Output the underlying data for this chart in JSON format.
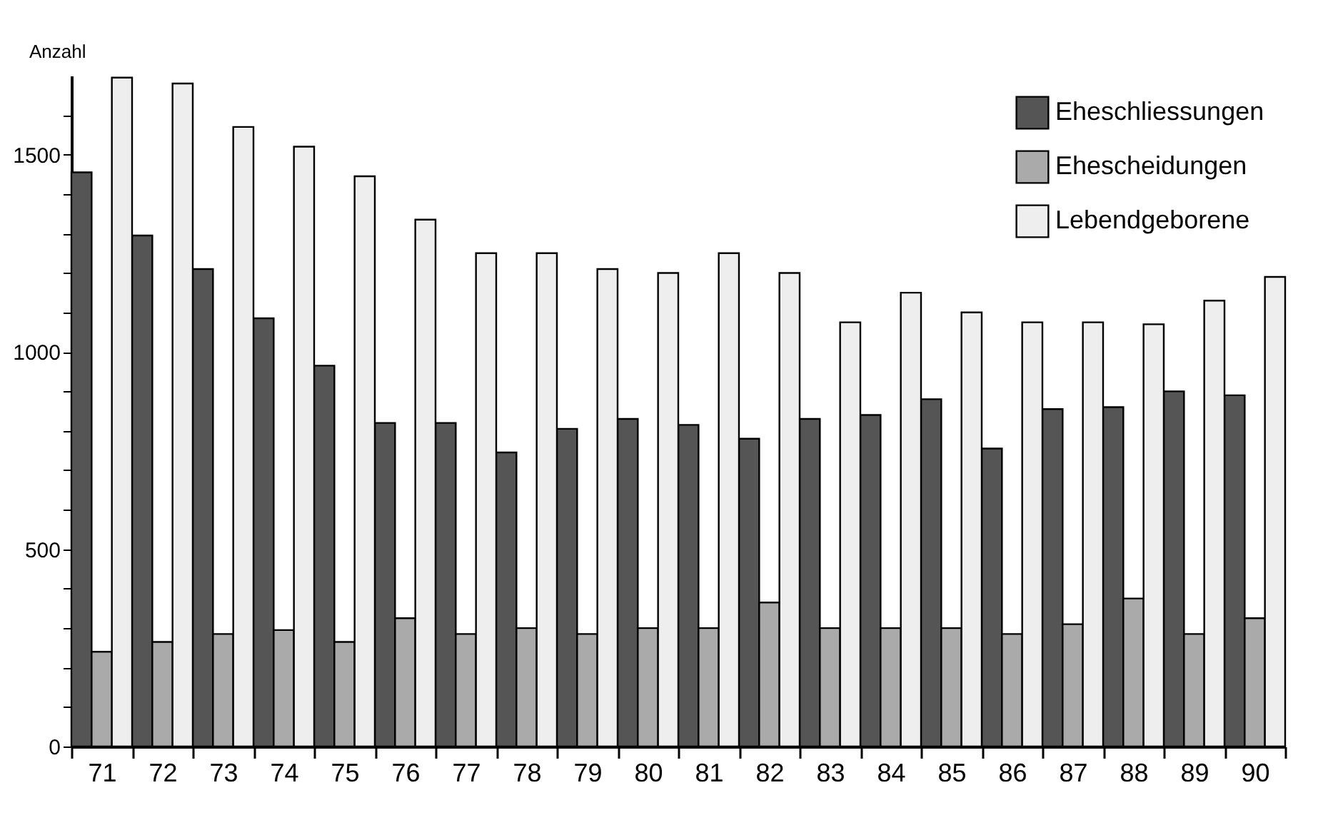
{
  "chart_data": {
    "type": "bar",
    "ylabel": "Anzahl",
    "categories": [
      "71",
      "72",
      "73",
      "74",
      "75",
      "76",
      "77",
      "78",
      "79",
      "80",
      "81",
      "82",
      "83",
      "84",
      "85",
      "86",
      "87",
      "88",
      "89",
      "90"
    ],
    "series": [
      {
        "name": "Eheschliessungen",
        "color": "#555555",
        "values": [
          1455,
          1295,
          1210,
          1085,
          965,
          820,
          820,
          745,
          805,
          830,
          815,
          780,
          830,
          840,
          880,
          755,
          855,
          860,
          900,
          890
        ]
      },
      {
        "name": "Ehescheidungen",
        "color": "#aaaaaa",
        "values": [
          240,
          265,
          285,
          295,
          265,
          325,
          285,
          300,
          285,
          300,
          300,
          365,
          300,
          300,
          300,
          285,
          310,
          375,
          285,
          325
        ]
      },
      {
        "name": "Lebendgeborene",
        "color": "#eeeeee",
        "values": [
          1695,
          1680,
          1570,
          1520,
          1445,
          1335,
          1250,
          1250,
          1210,
          1200,
          1250,
          1200,
          1075,
          1150,
          1100,
          1075,
          1075,
          1070,
          1130,
          1190
        ]
      }
    ],
    "ylim": [
      0,
      1700
    ],
    "yticks": [
      0,
      {
        "value": 100,
        "label": null
      },
      {
        "value": 200,
        "label": null
      },
      {
        "value": 300,
        "label": null
      },
      {
        "value": 400,
        "label": null
      },
      500,
      {
        "value": 600,
        "label": null
      },
      {
        "value": 700,
        "label": null
      },
      {
        "value": 800,
        "label": null
      },
      {
        "value": 900,
        "label": null
      },
      1000,
      {
        "value": 1100,
        "label": null
      },
      {
        "value": 1200,
        "label": null
      },
      {
        "value": 1300,
        "label": null
      },
      {
        "value": 1400,
        "label": null
      },
      1500,
      {
        "value": 1600,
        "label": null
      }
    ],
    "grid": false,
    "legend": "top right"
  }
}
